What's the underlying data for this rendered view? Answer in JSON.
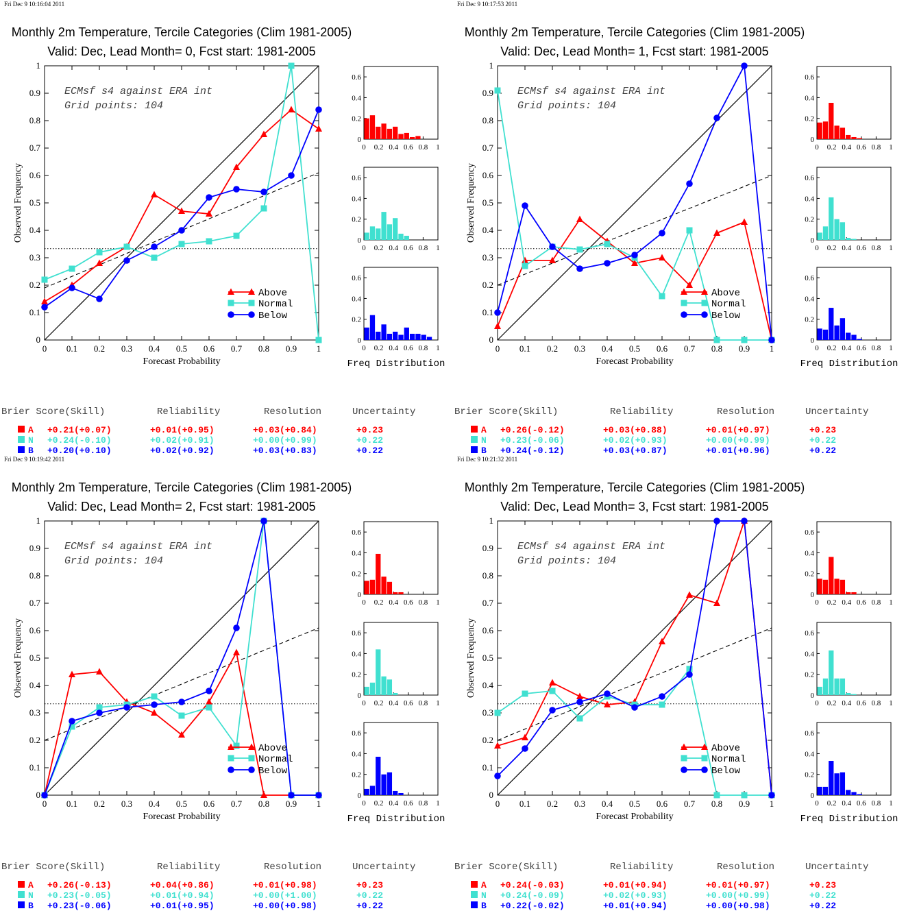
{
  "colors": {
    "above": "#ff0000",
    "normal": "#40e0d0",
    "below": "#0000ff",
    "axis": "#000000"
  },
  "legend": {
    "above": "Above",
    "normal": "Normal",
    "below": "Below"
  },
  "score_header": {
    "brier": "Brier Score(Skill)",
    "reliability": "Reliability",
    "resolution": "Resolution",
    "uncertainty": "Uncertainty"
  },
  "chart_data": [
    {
      "type": "line",
      "timestamp": "Fri Dec  9 10:16:04 2011",
      "title": "Monthly 2m Temperature, Tercile Categories (Clim 1981-2005)",
      "subtitle": "Valid: Dec, Lead Month= 0, Fcst start: 1981-2005",
      "annotation_1": "ECMsf s4 against ERA int",
      "annotation_2": "Grid points:  104",
      "xlabel": "Forecast Probability",
      "ylabel": "Observed Frequency",
      "hist_xlabel": "Freq Distribution",
      "xlim": [
        0,
        1
      ],
      "ylim": [
        0,
        1
      ],
      "x": [
        0,
        0.1,
        0.2,
        0.3,
        0.4,
        0.5,
        0.6,
        0.7,
        0.8,
        0.9,
        1
      ],
      "series": [
        {
          "name": "Above",
          "values": [
            0.14,
            0.2,
            0.28,
            0.34,
            0.53,
            0.47,
            0.46,
            0.63,
            0.75,
            0.84,
            0.77
          ]
        },
        {
          "name": "Normal",
          "values": [
            0.22,
            0.26,
            0.32,
            0.34,
            0.3,
            0.35,
            0.36,
            0.38,
            0.48,
            1.0,
            0.0
          ]
        },
        {
          "name": "Below",
          "values": [
            0.12,
            0.19,
            0.15,
            0.29,
            0.34,
            0.4,
            0.52,
            0.55,
            0.54,
            0.6,
            0.84
          ]
        }
      ],
      "diagonal": true,
      "skill_line": [
        [
          0,
          0.19
        ],
        [
          1,
          0.61
        ]
      ],
      "climatology": 0.333,
      "hist": {
        "xlim": [
          0,
          1
        ],
        "ylim": [
          0,
          0.7
        ],
        "above": [
          0.2,
          0.23,
          0.12,
          0.15,
          0.1,
          0.12,
          0.05,
          0.06,
          0.02,
          0.03
        ],
        "normal": [
          0.07,
          0.13,
          0.11,
          0.27,
          0.15,
          0.21,
          0.06,
          0.04
        ],
        "below": [
          0.12,
          0.24,
          0.08,
          0.15,
          0.06,
          0.08,
          0.05,
          0.12,
          0.06,
          0.06,
          0.05,
          0.03
        ]
      },
      "scores": [
        {
          "label": "A",
          "brier": "+0.21(+0.07)",
          "reliability": "+0.01(+0.95)",
          "resolution": "+0.03(+0.84)",
          "uncertainty": "+0.23"
        },
        {
          "label": "N",
          "brier": "+0.24(-0.10)",
          "reliability": "+0.02(+0.91)",
          "resolution": "+0.00(+0.99)",
          "uncertainty": "+0.22"
        },
        {
          "label": "B",
          "brier": "+0.20(+0.10)",
          "reliability": "+0.02(+0.92)",
          "resolution": "+0.03(+0.83)",
          "uncertainty": "+0.22"
        }
      ]
    },
    {
      "type": "line",
      "timestamp": "Fri Dec  9 10:17:53 2011",
      "title": "Monthly 2m Temperature, Tercile Categories (Clim 1981-2005)",
      "subtitle": "Valid: Dec, Lead Month= 1, Fcst start: 1981-2005",
      "annotation_1": "ECMsf s4 against ERA int",
      "annotation_2": "Grid points:  104",
      "xlabel": "Forecast Probability",
      "ylabel": "Observed Frequency",
      "hist_xlabel": "Freq Distribution",
      "xlim": [
        0,
        1
      ],
      "ylim": [
        0,
        1
      ],
      "x": [
        0,
        0.1,
        0.2,
        0.3,
        0.4,
        0.5,
        0.6,
        0.7,
        0.8,
        0.9,
        1
      ],
      "series": [
        {
          "name": "Above",
          "values": [
            0.05,
            0.29,
            0.29,
            0.44,
            0.36,
            0.28,
            0.3,
            0.2,
            0.39,
            0.43,
            0.0
          ]
        },
        {
          "name": "Normal",
          "values": [
            0.91,
            0.27,
            0.34,
            0.33,
            0.35,
            0.3,
            0.16,
            0.4,
            0.0,
            0.0,
            0.0
          ]
        },
        {
          "name": "Below",
          "values": [
            0.1,
            0.49,
            0.34,
            0.26,
            0.28,
            0.31,
            0.39,
            0.57,
            0.81,
            1.0,
            0.0
          ]
        }
      ],
      "diagonal": true,
      "skill_line": [
        [
          0,
          0.2
        ],
        [
          1,
          0.6
        ]
      ],
      "climatology": 0.333,
      "hist": {
        "xlim": [
          0,
          1
        ],
        "ylim": [
          0,
          0.7
        ],
        "above": [
          0.16,
          0.17,
          0.35,
          0.13,
          0.11,
          0.04,
          0.02,
          0.01
        ],
        "normal": [
          0.07,
          0.13,
          0.41,
          0.2,
          0.17,
          0.02,
          0.01
        ],
        "below": [
          0.11,
          0.1,
          0.31,
          0.14,
          0.21,
          0.07,
          0.05,
          0.01
        ]
      },
      "scores": [
        {
          "label": "A",
          "brier": "+0.26(-0.12)",
          "reliability": "+0.03(+0.88)",
          "resolution": "+0.01(+0.97)",
          "uncertainty": "+0.23"
        },
        {
          "label": "N",
          "brier": "+0.23(-0.06)",
          "reliability": "+0.02(+0.93)",
          "resolution": "+0.00(+0.99)",
          "uncertainty": "+0.22"
        },
        {
          "label": "B",
          "brier": "+0.24(-0.12)",
          "reliability": "+0.03(+0.87)",
          "resolution": "+0.01(+0.96)",
          "uncertainty": "+0.22"
        }
      ]
    },
    {
      "type": "line",
      "timestamp": "Fri Dec  9 10:19:42 2011",
      "title": "Monthly 2m Temperature, Tercile Categories (Clim 1981-2005)",
      "subtitle": "Valid: Dec, Lead Month= 2, Fcst start: 1981-2005",
      "annotation_1": "ECMsf s4 against ERA int",
      "annotation_2": "Grid points:  104",
      "xlabel": "Forecast Probability",
      "ylabel": "Observed Frequency",
      "hist_xlabel": "Freq Distribution",
      "xlim": [
        0,
        1
      ],
      "ylim": [
        0,
        1
      ],
      "x": [
        0,
        0.1,
        0.2,
        0.3,
        0.4,
        0.5,
        0.6,
        0.7,
        0.8,
        0.9,
        1
      ],
      "series": [
        {
          "name": "Above",
          "values": [
            0.0,
            0.44,
            0.45,
            0.34,
            0.3,
            0.22,
            0.34,
            0.52,
            0.0,
            0.0,
            0.0
          ]
        },
        {
          "name": "Normal",
          "values": [
            0.0,
            0.25,
            0.32,
            0.33,
            0.36,
            0.29,
            0.32,
            0.18,
            1.0,
            0.0,
            0.0
          ]
        },
        {
          "name": "Below",
          "values": [
            0.0,
            0.27,
            0.3,
            0.32,
            0.33,
            0.34,
            0.38,
            0.61,
            1.0,
            0.0,
            0.0
          ]
        }
      ],
      "diagonal": true,
      "skill_line": [
        [
          0,
          0.2
        ],
        [
          1,
          0.61
        ]
      ],
      "climatology": 0.333,
      "hist": {
        "xlim": [
          0,
          1
        ],
        "ylim": [
          0,
          0.7
        ],
        "above": [
          0.13,
          0.14,
          0.39,
          0.17,
          0.12,
          0.02,
          0.02
        ],
        "normal": [
          0.08,
          0.12,
          0.44,
          0.18,
          0.15,
          0.02
        ],
        "below": [
          0.06,
          0.09,
          0.37,
          0.2,
          0.22,
          0.04,
          0.02
        ]
      },
      "scores": [
        {
          "label": "A",
          "brier": "+0.26(-0.13)",
          "reliability": "+0.04(+0.86)",
          "resolution": "+0.01(+0.98)",
          "uncertainty": "+0.23"
        },
        {
          "label": "N",
          "brier": "+0.23(-0.05)",
          "reliability": "+0.01(+0.94)",
          "resolution": "+0.00(+1.00)",
          "uncertainty": "+0.22"
        },
        {
          "label": "B",
          "brier": "+0.23(-0.06)",
          "reliability": "+0.01(+0.95)",
          "resolution": "+0.00(+0.98)",
          "uncertainty": "+0.22"
        }
      ]
    },
    {
      "type": "line",
      "timestamp": "Fri Dec  9 10:21:32 2011",
      "title": "Monthly 2m Temperature, Tercile Categories (Clim 1981-2005)",
      "subtitle": "Valid: Dec, Lead Month= 3, Fcst start: 1981-2005",
      "annotation_1": "ECMsf s4 against ERA int",
      "annotation_2": "Grid points:  104",
      "xlabel": "Forecast Probability",
      "ylabel": "Observed Frequency",
      "hist_xlabel": "Freq Distribution",
      "xlim": [
        0,
        1
      ],
      "ylim": [
        0,
        1
      ],
      "x": [
        0,
        0.1,
        0.2,
        0.3,
        0.4,
        0.5,
        0.6,
        0.7,
        0.8,
        0.9,
        1
      ],
      "series": [
        {
          "name": "Above",
          "values": [
            0.18,
            0.21,
            0.41,
            0.36,
            0.33,
            0.34,
            0.56,
            0.73,
            0.7,
            1.0,
            0.0
          ]
        },
        {
          "name": "Normal",
          "values": [
            0.3,
            0.37,
            0.38,
            0.28,
            0.36,
            0.33,
            0.33,
            0.46,
            0.0,
            0.0,
            0.0
          ]
        },
        {
          "name": "Below",
          "values": [
            0.07,
            0.17,
            0.31,
            0.34,
            0.37,
            0.32,
            0.36,
            0.44,
            1.0,
            1.0,
            0.0
          ]
        }
      ],
      "diagonal": true,
      "skill_line": [
        [
          0,
          0.2
        ],
        [
          1,
          0.61
        ]
      ],
      "climatology": 0.333,
      "hist": {
        "xlim": [
          0,
          1
        ],
        "ylim": [
          0,
          0.7
        ],
        "above": [
          0.15,
          0.14,
          0.36,
          0.15,
          0.14,
          0.02,
          0.02
        ],
        "normal": [
          0.08,
          0.16,
          0.43,
          0.16,
          0.16,
          0.02,
          0.01
        ],
        "below": [
          0.08,
          0.08,
          0.33,
          0.21,
          0.22,
          0.05,
          0.03,
          0.01
        ]
      },
      "scores": [
        {
          "label": "A",
          "brier": "+0.24(-0.03)",
          "reliability": "+0.01(+0.94)",
          "resolution": "+0.01(+0.97)",
          "uncertainty": "+0.23"
        },
        {
          "label": "N",
          "brier": "+0.24(-0.09)",
          "reliability": "+0.02(+0.93)",
          "resolution": "+0.00(+0.99)",
          "uncertainty": "+0.22"
        },
        {
          "label": "B",
          "brier": "+0.22(-0.02)",
          "reliability": "+0.01(+0.94)",
          "resolution": "+0.00(+0.98)",
          "uncertainty": "+0.22"
        }
      ]
    }
  ]
}
